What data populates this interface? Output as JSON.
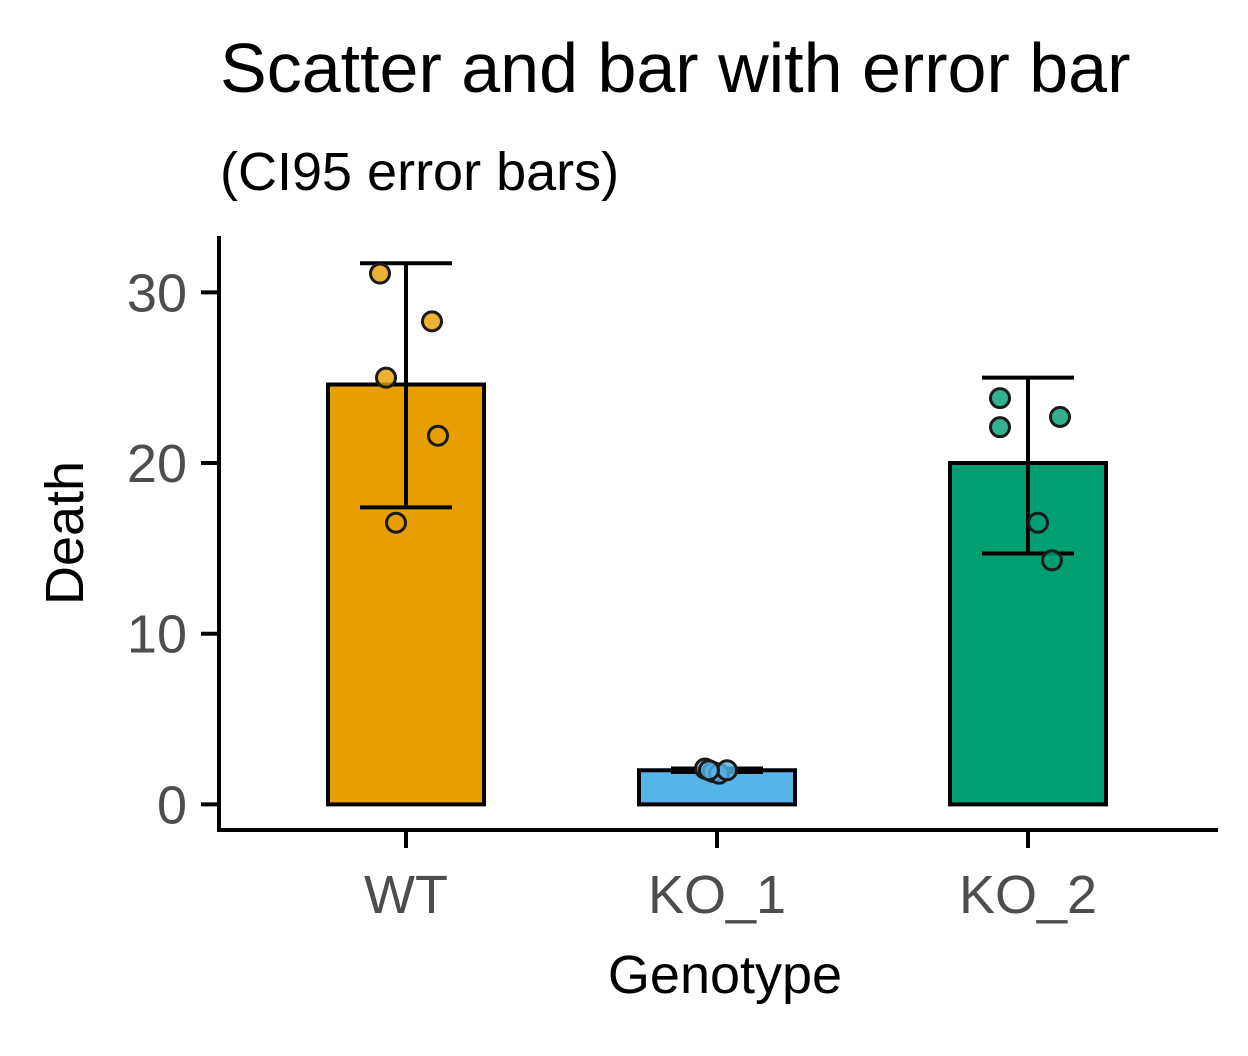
{
  "chart_data": {
    "type": "bar",
    "title": "Scatter and bar with error bar",
    "subtitle": "(CI95 error bars)",
    "xlabel": "Genotype",
    "ylabel": "Death",
    "ylim": [
      -1.5,
      33.3
    ],
    "yticks": [
      0,
      10,
      20,
      30
    ],
    "ytick_labels": [
      "0",
      "10",
      "20",
      "30"
    ],
    "categories": [
      "WT",
      "KO_1",
      "KO_2"
    ],
    "values": [
      24.6,
      2.0,
      20.0
    ],
    "colors": [
      "#E69F00",
      "#56B4E9",
      "#009E73"
    ],
    "error_bars": [
      {
        "low": 17.4,
        "high": 31.7
      },
      {
        "low": 1.9,
        "high": 2.1
      },
      {
        "low": 14.7,
        "high": 25.0
      }
    ],
    "points": [
      [
        31.1,
        28.3,
        25.0,
        21.6,
        16.5
      ],
      [
        2.1,
        1.9,
        1.8,
        2.0,
        2.0
      ],
      [
        23.8,
        22.7,
        22.1,
        16.5,
        14.3
      ]
    ],
    "grid": false,
    "legend": "none"
  }
}
